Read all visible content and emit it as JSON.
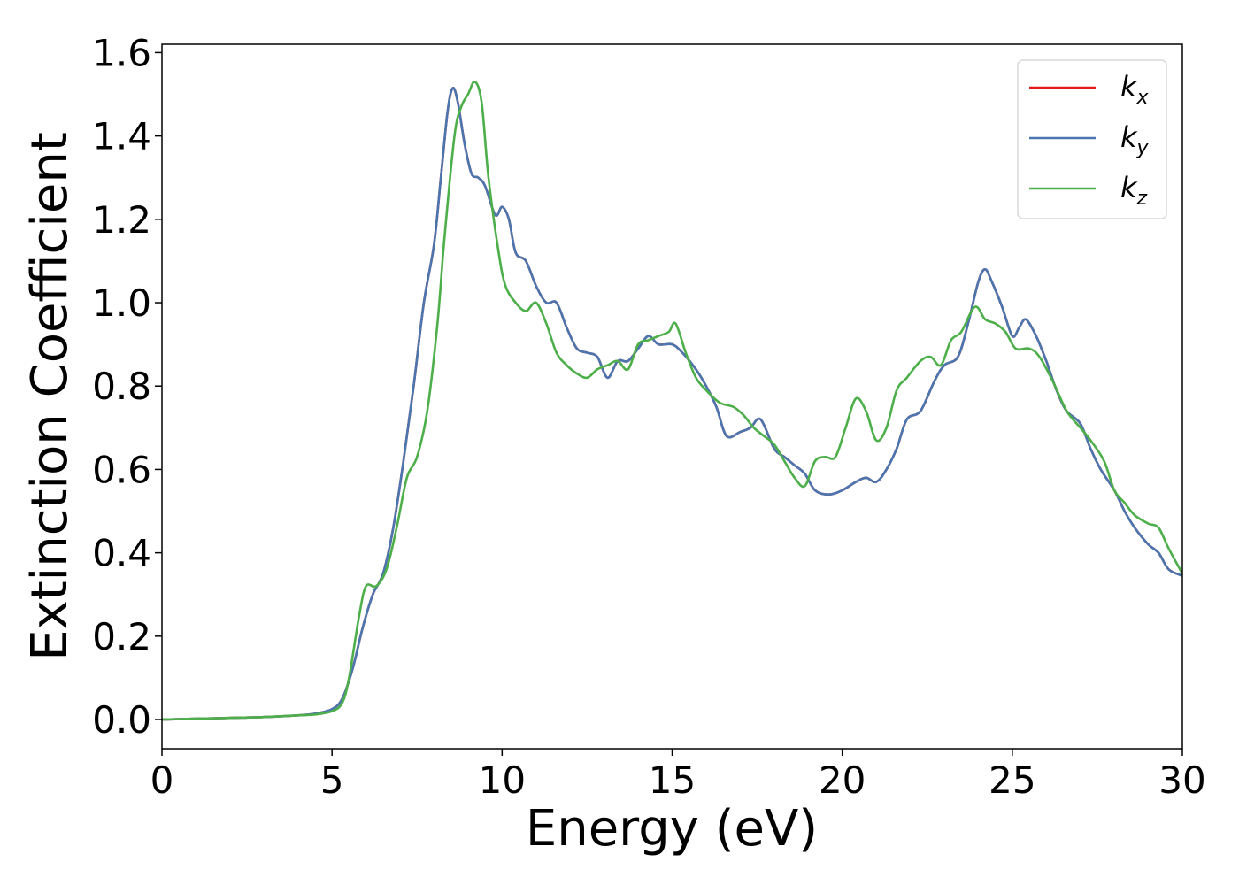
{
  "chart_data": {
    "type": "line",
    "title": "",
    "xlabel": "Energy (eV)",
    "ylabel": "Extinction Coefficient",
    "xlim": [
      0,
      30
    ],
    "ylim": [
      -0.07,
      1.62
    ],
    "xticks": [
      0,
      5,
      10,
      15,
      20,
      25,
      30
    ],
    "yticks": [
      0.0,
      0.2,
      0.4,
      0.6,
      0.8,
      1.0,
      1.2,
      1.4,
      1.6
    ],
    "xtick_labels": [
      "0",
      "5",
      "10",
      "15",
      "20",
      "25",
      "30"
    ],
    "ytick_labels": [
      "0.0",
      "0.2",
      "0.4",
      "0.6",
      "0.8",
      "1.0",
      "1.2",
      "1.4",
      "1.6"
    ],
    "grid": false,
    "legend_position": "top-right",
    "series": [
      {
        "name": "k_x",
        "label_main": "k",
        "label_sub": "x",
        "color": "#e41a1c",
        "points": [
          [
            0,
            0
          ],
          [
            1,
            0.002
          ],
          [
            2,
            0.004
          ],
          [
            3,
            0.006
          ],
          [
            4,
            0.01
          ],
          [
            4.5,
            0.014
          ],
          [
            5,
            0.025
          ],
          [
            5.3,
            0.05
          ],
          [
            5.6,
            0.12
          ],
          [
            5.9,
            0.22
          ],
          [
            6.2,
            0.3
          ],
          [
            6.5,
            0.35
          ],
          [
            6.8,
            0.46
          ],
          [
            7.1,
            0.62
          ],
          [
            7.4,
            0.8
          ],
          [
            7.7,
            1.0
          ],
          [
            8.0,
            1.14
          ],
          [
            8.2,
            1.3
          ],
          [
            8.4,
            1.46
          ],
          [
            8.55,
            1.515
          ],
          [
            8.7,
            1.48
          ],
          [
            8.9,
            1.38
          ],
          [
            9.1,
            1.31
          ],
          [
            9.3,
            1.3
          ],
          [
            9.5,
            1.28
          ],
          [
            9.8,
            1.21
          ],
          [
            10.0,
            1.23
          ],
          [
            10.2,
            1.2
          ],
          [
            10.4,
            1.12
          ],
          [
            10.7,
            1.1
          ],
          [
            11.0,
            1.04
          ],
          [
            11.3,
            1.0
          ],
          [
            11.6,
            1.0
          ],
          [
            11.9,
            0.94
          ],
          [
            12.2,
            0.89
          ],
          [
            12.5,
            0.88
          ],
          [
            12.8,
            0.87
          ],
          [
            13.1,
            0.82
          ],
          [
            13.4,
            0.86
          ],
          [
            13.7,
            0.86
          ],
          [
            14.0,
            0.89
          ],
          [
            14.3,
            0.92
          ],
          [
            14.6,
            0.9
          ],
          [
            15.0,
            0.9
          ],
          [
            15.3,
            0.88
          ],
          [
            15.7,
            0.84
          ],
          [
            16.0,
            0.8
          ],
          [
            16.3,
            0.75
          ],
          [
            16.6,
            0.68
          ],
          [
            17.0,
            0.69
          ],
          [
            17.3,
            0.7
          ],
          [
            17.6,
            0.72
          ],
          [
            18.0,
            0.65
          ],
          [
            18.3,
            0.63
          ],
          [
            18.6,
            0.61
          ],
          [
            18.9,
            0.59
          ],
          [
            19.2,
            0.55
          ],
          [
            19.6,
            0.54
          ],
          [
            20.0,
            0.55
          ],
          [
            20.4,
            0.57
          ],
          [
            20.7,
            0.58
          ],
          [
            21.0,
            0.57
          ],
          [
            21.3,
            0.6
          ],
          [
            21.6,
            0.65
          ],
          [
            21.9,
            0.72
          ],
          [
            22.3,
            0.74
          ],
          [
            22.7,
            0.81
          ],
          [
            23.0,
            0.85
          ],
          [
            23.4,
            0.87
          ],
          [
            23.7,
            0.95
          ],
          [
            24.0,
            1.05
          ],
          [
            24.2,
            1.08
          ],
          [
            24.4,
            1.05
          ],
          [
            24.7,
            0.99
          ],
          [
            25.0,
            0.92
          ],
          [
            25.2,
            0.94
          ],
          [
            25.4,
            0.96
          ],
          [
            25.7,
            0.92
          ],
          [
            26.0,
            0.86
          ],
          [
            26.3,
            0.79
          ],
          [
            26.6,
            0.74
          ],
          [
            27.0,
            0.71
          ],
          [
            27.3,
            0.65
          ],
          [
            27.6,
            0.6
          ],
          [
            28.0,
            0.55
          ],
          [
            28.3,
            0.5
          ],
          [
            28.6,
            0.46
          ],
          [
            29.0,
            0.42
          ],
          [
            29.3,
            0.4
          ],
          [
            29.6,
            0.36
          ],
          [
            30.0,
            0.345
          ]
        ]
      },
      {
        "name": "k_y",
        "label_main": "k",
        "label_sub": "y",
        "color": "#4a76b0",
        "points": [
          [
            0,
            0
          ],
          [
            1,
            0.002
          ],
          [
            2,
            0.004
          ],
          [
            3,
            0.006
          ],
          [
            4,
            0.01
          ],
          [
            4.5,
            0.014
          ],
          [
            5,
            0.025
          ],
          [
            5.3,
            0.05
          ],
          [
            5.6,
            0.12
          ],
          [
            5.9,
            0.22
          ],
          [
            6.2,
            0.3
          ],
          [
            6.5,
            0.35
          ],
          [
            6.8,
            0.46
          ],
          [
            7.1,
            0.62
          ],
          [
            7.4,
            0.8
          ],
          [
            7.7,
            1.0
          ],
          [
            8.0,
            1.14
          ],
          [
            8.2,
            1.3
          ],
          [
            8.4,
            1.46
          ],
          [
            8.55,
            1.515
          ],
          [
            8.7,
            1.48
          ],
          [
            8.9,
            1.38
          ],
          [
            9.1,
            1.31
          ],
          [
            9.3,
            1.3
          ],
          [
            9.5,
            1.28
          ],
          [
            9.8,
            1.21
          ],
          [
            10.0,
            1.23
          ],
          [
            10.2,
            1.2
          ],
          [
            10.4,
            1.12
          ],
          [
            10.7,
            1.1
          ],
          [
            11.0,
            1.04
          ],
          [
            11.3,
            1.0
          ],
          [
            11.6,
            1.0
          ],
          [
            11.9,
            0.94
          ],
          [
            12.2,
            0.89
          ],
          [
            12.5,
            0.88
          ],
          [
            12.8,
            0.87
          ],
          [
            13.1,
            0.82
          ],
          [
            13.4,
            0.86
          ],
          [
            13.7,
            0.86
          ],
          [
            14.0,
            0.89
          ],
          [
            14.3,
            0.92
          ],
          [
            14.6,
            0.9
          ],
          [
            15.0,
            0.9
          ],
          [
            15.3,
            0.88
          ],
          [
            15.7,
            0.84
          ],
          [
            16.0,
            0.8
          ],
          [
            16.3,
            0.75
          ],
          [
            16.6,
            0.68
          ],
          [
            17.0,
            0.69
          ],
          [
            17.3,
            0.7
          ],
          [
            17.6,
            0.72
          ],
          [
            18.0,
            0.65
          ],
          [
            18.3,
            0.63
          ],
          [
            18.6,
            0.61
          ],
          [
            18.9,
            0.59
          ],
          [
            19.2,
            0.55
          ],
          [
            19.6,
            0.54
          ],
          [
            20.0,
            0.55
          ],
          [
            20.4,
            0.57
          ],
          [
            20.7,
            0.58
          ],
          [
            21.0,
            0.57
          ],
          [
            21.3,
            0.6
          ],
          [
            21.6,
            0.65
          ],
          [
            21.9,
            0.72
          ],
          [
            22.3,
            0.74
          ],
          [
            22.7,
            0.81
          ],
          [
            23.0,
            0.85
          ],
          [
            23.4,
            0.87
          ],
          [
            23.7,
            0.95
          ],
          [
            24.0,
            1.05
          ],
          [
            24.2,
            1.08
          ],
          [
            24.4,
            1.05
          ],
          [
            24.7,
            0.99
          ],
          [
            25.0,
            0.92
          ],
          [
            25.2,
            0.94
          ],
          [
            25.4,
            0.96
          ],
          [
            25.7,
            0.92
          ],
          [
            26.0,
            0.86
          ],
          [
            26.3,
            0.79
          ],
          [
            26.6,
            0.74
          ],
          [
            27.0,
            0.71
          ],
          [
            27.3,
            0.65
          ],
          [
            27.6,
            0.6
          ],
          [
            28.0,
            0.55
          ],
          [
            28.3,
            0.5
          ],
          [
            28.6,
            0.46
          ],
          [
            29.0,
            0.42
          ],
          [
            29.3,
            0.4
          ],
          [
            29.6,
            0.36
          ],
          [
            30.0,
            0.345
          ]
        ]
      },
      {
        "name": "k_z",
        "label_main": "k",
        "label_sub": "z",
        "color": "#4daf4a",
        "points": [
          [
            0,
            0
          ],
          [
            1,
            0.002
          ],
          [
            2,
            0.004
          ],
          [
            3,
            0.006
          ],
          [
            4,
            0.01
          ],
          [
            4.5,
            0.012
          ],
          [
            5,
            0.02
          ],
          [
            5.3,
            0.04
          ],
          [
            5.5,
            0.1
          ],
          [
            5.8,
            0.25
          ],
          [
            6.0,
            0.32
          ],
          [
            6.3,
            0.32
          ],
          [
            6.6,
            0.36
          ],
          [
            6.9,
            0.46
          ],
          [
            7.2,
            0.58
          ],
          [
            7.5,
            0.63
          ],
          [
            7.8,
            0.74
          ],
          [
            8.1,
            0.95
          ],
          [
            8.3,
            1.15
          ],
          [
            8.6,
            1.4
          ],
          [
            8.8,
            1.47
          ],
          [
            9.0,
            1.5
          ],
          [
            9.2,
            1.53
          ],
          [
            9.4,
            1.48
          ],
          [
            9.6,
            1.3
          ],
          [
            9.9,
            1.12
          ],
          [
            10.1,
            1.04
          ],
          [
            10.4,
            1.0
          ],
          [
            10.7,
            0.98
          ],
          [
            11.0,
            1.0
          ],
          [
            11.3,
            0.95
          ],
          [
            11.6,
            0.88
          ],
          [
            11.9,
            0.85
          ],
          [
            12.2,
            0.83
          ],
          [
            12.5,
            0.82
          ],
          [
            12.8,
            0.84
          ],
          [
            13.1,
            0.85
          ],
          [
            13.4,
            0.86
          ],
          [
            13.7,
            0.84
          ],
          [
            14.0,
            0.9
          ],
          [
            14.3,
            0.91
          ],
          [
            14.6,
            0.92
          ],
          [
            14.9,
            0.93
          ],
          [
            15.1,
            0.95
          ],
          [
            15.4,
            0.88
          ],
          [
            15.7,
            0.82
          ],
          [
            16.0,
            0.79
          ],
          [
            16.4,
            0.76
          ],
          [
            16.8,
            0.75
          ],
          [
            17.1,
            0.73
          ],
          [
            17.4,
            0.7
          ],
          [
            17.7,
            0.68
          ],
          [
            18.0,
            0.66
          ],
          [
            18.3,
            0.62
          ],
          [
            18.6,
            0.58
          ],
          [
            18.9,
            0.56
          ],
          [
            19.2,
            0.62
          ],
          [
            19.5,
            0.63
          ],
          [
            19.8,
            0.63
          ],
          [
            20.1,
            0.7
          ],
          [
            20.4,
            0.77
          ],
          [
            20.7,
            0.74
          ],
          [
            21.0,
            0.67
          ],
          [
            21.3,
            0.7
          ],
          [
            21.6,
            0.79
          ],
          [
            21.9,
            0.82
          ],
          [
            22.3,
            0.86
          ],
          [
            22.6,
            0.87
          ],
          [
            22.9,
            0.85
          ],
          [
            23.2,
            0.91
          ],
          [
            23.5,
            0.93
          ],
          [
            23.9,
            0.99
          ],
          [
            24.2,
            0.96
          ],
          [
            24.5,
            0.95
          ],
          [
            24.8,
            0.93
          ],
          [
            25.1,
            0.89
          ],
          [
            25.5,
            0.89
          ],
          [
            25.8,
            0.87
          ],
          [
            26.2,
            0.81
          ],
          [
            26.6,
            0.74
          ],
          [
            27.0,
            0.7
          ],
          [
            27.3,
            0.67
          ],
          [
            27.7,
            0.62
          ],
          [
            28.0,
            0.55
          ],
          [
            28.3,
            0.52
          ],
          [
            28.6,
            0.49
          ],
          [
            29.0,
            0.47
          ],
          [
            29.3,
            0.46
          ],
          [
            29.6,
            0.41
          ],
          [
            30.0,
            0.35
          ]
        ]
      }
    ]
  }
}
